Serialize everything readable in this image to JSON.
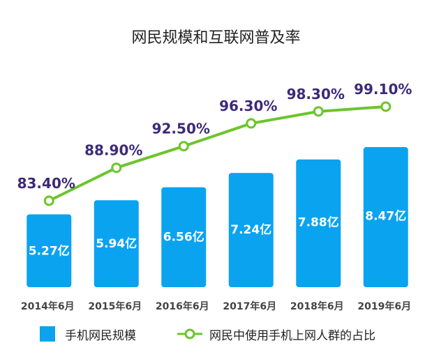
{
  "chart_data": {
    "type": "bar",
    "title": "网民规模和互联网普及率",
    "categories": [
      "2014年6月",
      "2015年6月",
      "2016年6月",
      "2017年6月",
      "2018年6月",
      "2019年6月"
    ],
    "series": [
      {
        "name": "手机网民规模",
        "kind": "bar",
        "values": [
          5.27,
          5.94,
          6.56,
          7.24,
          7.88,
          8.47
        ],
        "labels": [
          "5.27亿",
          "5.94亿",
          "6.56亿",
          "7.24亿",
          "7.88亿",
          "8.47亿"
        ],
        "color": "#0aa3f0"
      },
      {
        "name": "网民中使用手机上网人群的占比",
        "kind": "line",
        "values": [
          83.4,
          88.9,
          92.5,
          96.3,
          98.3,
          99.1
        ],
        "labels": [
          "83.40%",
          "88.90%",
          "92.50%",
          "96.30%",
          "98.30%",
          "99.10%"
        ],
        "color": "#6cc52c"
      }
    ],
    "label_color": "#3d2a78",
    "legend": "bottom",
    "grid": false
  }
}
